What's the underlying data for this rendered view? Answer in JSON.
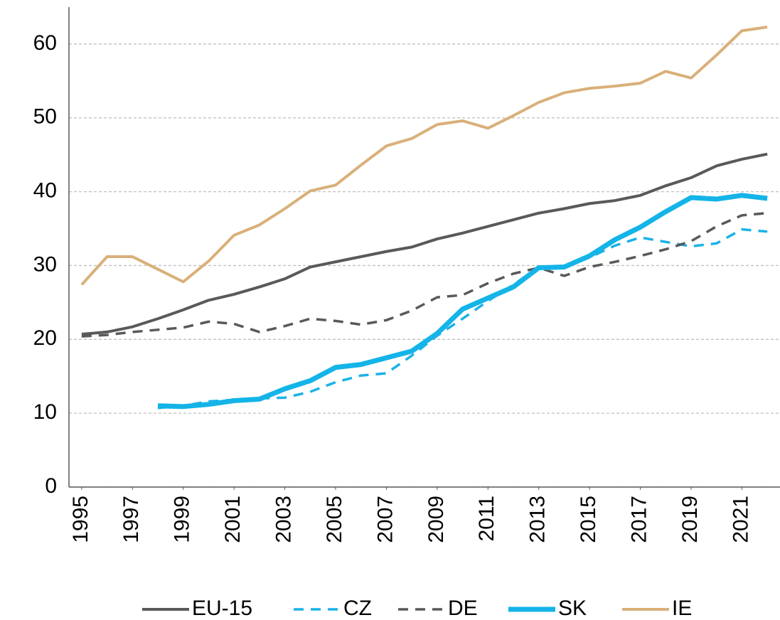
{
  "chart_data": {
    "type": "line",
    "x": [
      1995,
      1996,
      1997,
      1998,
      1999,
      2000,
      2001,
      2002,
      2003,
      2004,
      2005,
      2006,
      2007,
      2008,
      2009,
      2010,
      2011,
      2012,
      2013,
      2014,
      2015,
      2016,
      2017,
      2018,
      2019,
      2020,
      2021,
      2022
    ],
    "xlim": [
      1994.5,
      2022.5
    ],
    "xticks": [
      1995,
      1997,
      1999,
      2001,
      2003,
      2005,
      2007,
      2009,
      2011,
      2013,
      2015,
      2017,
      2019,
      2021
    ],
    "ylim": [
      0,
      65
    ],
    "yticks": [
      0,
      10,
      20,
      30,
      40,
      50,
      60
    ],
    "grid": true,
    "legend": "bottom",
    "series": [
      {
        "name": "EU-15",
        "color": "#595959",
        "line_style": "solid",
        "values": [
          20.7,
          21.0,
          21.7,
          22.8,
          24.0,
          25.3,
          26.1,
          27.1,
          28.2,
          29.8,
          30.5,
          31.2,
          31.9,
          32.5,
          33.6,
          34.4,
          35.3,
          36.2,
          37.1,
          37.7,
          38.4,
          38.8,
          39.5,
          40.8,
          41.9,
          43.5,
          44.4,
          45.1
        ]
      },
      {
        "name": "CZ",
        "color": "#1ab2e8",
        "line_style": "dashed",
        "values": [
          null,
          null,
          null,
          10.7,
          11.0,
          11.6,
          11.8,
          12.0,
          12.1,
          12.9,
          14.2,
          15.1,
          15.4,
          17.8,
          20.5,
          22.8,
          25.2,
          27.4,
          29.8,
          29.7,
          31.1,
          32.7,
          33.8,
          33.2,
          32.6,
          33.0,
          34.9,
          34.6
        ]
      },
      {
        "name": "DE",
        "color": "#595959",
        "line_style": "dashed",
        "values": [
          20.4,
          20.6,
          21.0,
          21.3,
          21.6,
          22.4,
          22.1,
          21.0,
          21.8,
          22.8,
          22.5,
          22.0,
          22.6,
          23.9,
          25.7,
          26.0,
          27.6,
          28.9,
          29.7,
          28.6,
          29.8,
          30.5,
          31.3,
          32.2,
          33.3,
          35.3,
          36.8,
          37.1
        ]
      },
      {
        "name": "SK",
        "color": "#14b4e8",
        "line_style": "solid",
        "values": [
          null,
          null,
          null,
          11.0,
          10.9,
          11.2,
          11.7,
          11.9,
          13.3,
          14.4,
          16.2,
          16.6,
          17.5,
          18.4,
          20.8,
          24.1,
          25.6,
          27.1,
          29.7,
          29.8,
          31.3,
          33.5,
          35.2,
          37.3,
          39.2,
          39.0,
          39.5,
          39.1
        ]
      },
      {
        "name": "IE",
        "color": "#d9b07a",
        "line_style": "solid",
        "values": [
          27.4,
          31.2,
          31.2,
          29.5,
          27.8,
          30.6,
          34.1,
          35.5,
          37.7,
          40.1,
          40.9,
          43.6,
          46.2,
          47.2,
          49.1,
          49.6,
          48.6,
          50.3,
          52.1,
          53.4,
          54.0,
          54.3,
          54.7,
          56.3,
          55.4,
          58.5,
          61.8,
          62.3
        ]
      }
    ]
  }
}
